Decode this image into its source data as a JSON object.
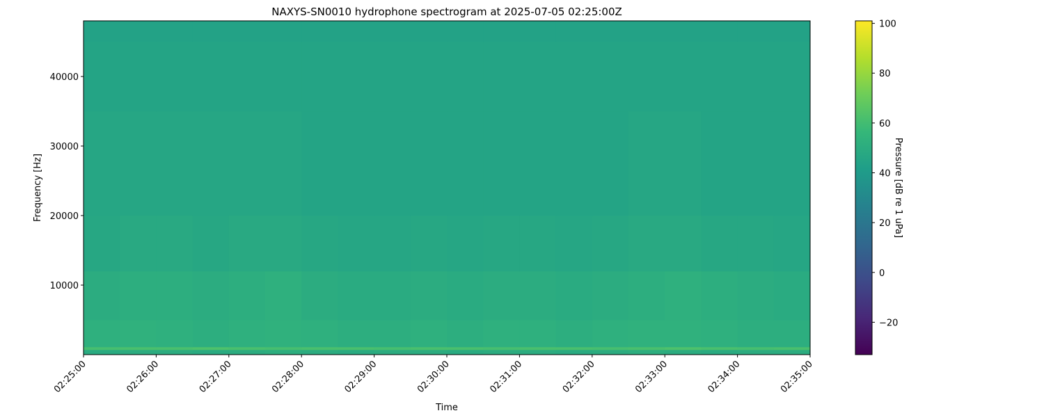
{
  "chart_data": {
    "type": "heatmap",
    "title": "NAXYS-SN0010 hydrophone spectrogram at 2025-07-05 02:25:00Z",
    "xlabel": "Time",
    "ylabel": "Frequency [Hz]",
    "colorbar_label": "Pressure [dB re 1 uPa]",
    "colormap": "viridis",
    "xlim": [
      "02:25:00",
      "02:35:00"
    ],
    "ylim": [
      0,
      48000
    ],
    "clim": [
      -33,
      101
    ],
    "x_ticks": [
      "02:25:00",
      "02:26:00",
      "02:27:00",
      "02:28:00",
      "02:29:00",
      "02:30:00",
      "02:31:00",
      "02:32:00",
      "02:33:00",
      "02:34:00",
      "02:35:00"
    ],
    "y_ticks": [
      10000,
      20000,
      30000,
      40000
    ],
    "colorbar_ticks": [
      -20,
      0,
      20,
      40,
      60,
      80,
      100
    ],
    "grid": false,
    "time_bin_seconds": 30,
    "frequency_band_edges": [
      0,
      700,
      1100,
      5000,
      12000,
      20000,
      35000,
      45000,
      48000
    ],
    "values_db": [
      [
        49,
        50,
        50,
        49,
        50,
        51,
        50,
        49,
        50,
        50,
        49,
        50,
        50,
        49,
        50,
        51,
        50,
        49,
        50,
        50
      ],
      [
        61,
        62,
        62,
        63,
        62,
        61,
        62,
        62,
        61,
        62,
        62,
        61,
        62,
        62,
        61,
        62,
        63,
        62,
        61,
        62
      ],
      [
        52,
        53,
        52,
        51,
        52,
        53,
        52,
        51,
        51,
        52,
        51,
        52,
        52,
        51,
        52,
        53,
        53,
        52,
        51,
        51
      ],
      [
        50,
        51,
        51,
        50,
        51,
        52,
        50,
        49,
        49,
        50,
        49,
        50,
        50,
        49,
        50,
        51,
        52,
        51,
        50,
        49
      ],
      [
        47,
        48,
        48,
        47,
        48,
        48,
        47,
        46,
        46,
        47,
        46,
        47,
        47,
        46,
        47,
        48,
        48,
        47,
        47,
        46
      ],
      [
        46,
        46,
        46,
        46,
        46,
        46,
        45,
        45,
        45,
        45,
        45,
        45,
        45,
        45,
        45,
        46,
        46,
        45,
        45,
        45
      ],
      [
        45,
        45,
        45,
        45,
        45,
        45,
        45,
        45,
        45,
        45,
        45,
        45,
        45,
        45,
        45,
        45,
        45,
        45,
        45,
        45
      ],
      [
        44,
        44,
        44,
        44,
        44,
        44,
        44,
        44,
        44,
        44,
        44,
        44,
        44,
        44,
        44,
        44,
        44,
        44,
        44,
        44
      ]
    ]
  }
}
